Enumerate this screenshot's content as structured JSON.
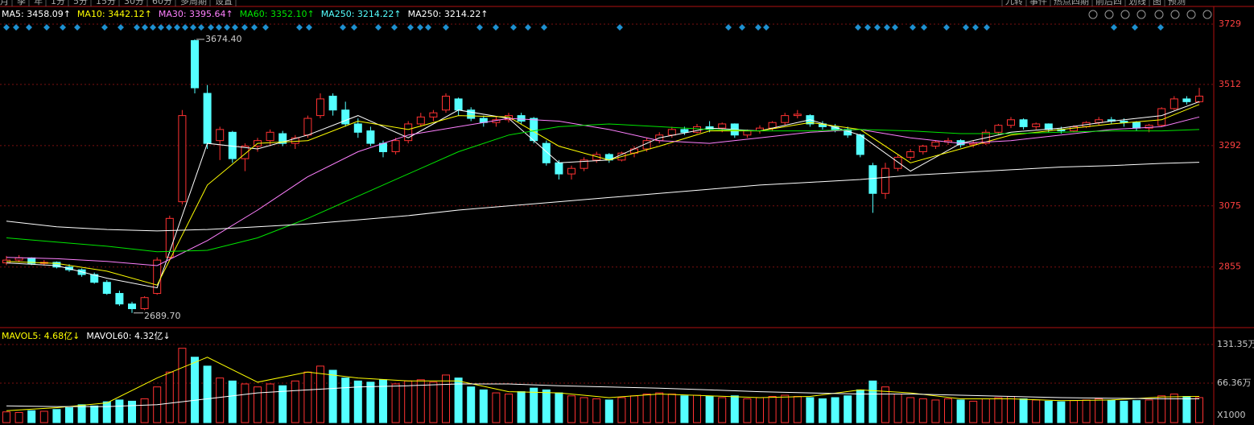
{
  "chart_data": {
    "type": "candlestick",
    "toolbar_left": [
      "月",
      "季",
      "年",
      "1分",
      "5分",
      "15分",
      "30分",
      "60分",
      "多周期",
      "设置"
    ],
    "toolbar_right": [
      "九转",
      "事件",
      "热点四期",
      "前后四",
      "划线",
      "图",
      "预测"
    ],
    "legend": [
      {
        "text": "MA5: 3458.09↑",
        "color": "#ffffff"
      },
      {
        "text": "MA10: 3442.12↑",
        "color": "#ffff00"
      },
      {
        "text": "MA30: 3395.64↑",
        "color": "#ff80ff"
      },
      {
        "text": "MA60: 3352.10↑",
        "color": "#00e600"
      },
      {
        "text": "MA250: 3214.22↑",
        "color": "#54ffff"
      },
      {
        "text": "MA250: 3214.22↑",
        "color": "#ffffff"
      }
    ],
    "vol_legend": [
      {
        "text": "MAVOL5: 4.68亿↓",
        "color": "#ffff00"
      },
      {
        "text": "MAVOL60: 4.32亿↓",
        "color": "#ffffff"
      }
    ],
    "up_color": "#ff3232",
    "down_color": "#54ffff",
    "ylim": [
      2637,
      3787
    ],
    "yticks": [
      3729,
      3512,
      3292,
      3075,
      2855
    ],
    "vol_ylim": [
      0,
      155.7
    ],
    "vol_yticks": [
      {
        "value": 131.35,
        "label": "131.35万"
      },
      {
        "value": 66.36,
        "label": "66.36万"
      }
    ],
    "vol_unit": "X1000",
    "annotations": [
      {
        "value": 3674.4,
        "label": "3674.40"
      },
      {
        "value": 2689.7,
        "label": "2689.70"
      }
    ],
    "candles": [
      [
        2870,
        2895,
        2862,
        2880
      ],
      [
        2880,
        2898,
        2872,
        2888
      ],
      [
        2888,
        2890,
        2862,
        2868
      ],
      [
        2868,
        2880,
        2860,
        2872
      ],
      [
        2872,
        2875,
        2850,
        2855
      ],
      [
        2855,
        2865,
        2838,
        2845
      ],
      [
        2845,
        2850,
        2820,
        2828
      ],
      [
        2828,
        2835,
        2795,
        2800
      ],
      [
        2800,
        2808,
        2755,
        2760
      ],
      [
        2760,
        2770,
        2715,
        2722
      ],
      [
        2722,
        2730,
        2689.7,
        2705
      ],
      [
        2705,
        2750,
        2700,
        2745
      ],
      [
        2760,
        2890,
        2755,
        2880
      ],
      [
        2890,
        3040,
        2885,
        3030
      ],
      [
        3090,
        3420,
        3080,
        3400
      ],
      [
        3670,
        3674.4,
        3480,
        3500
      ],
      [
        3480,
        3510,
        3280,
        3300
      ],
      [
        3310,
        3360,
        3240,
        3350
      ],
      [
        3340,
        3345,
        3230,
        3245
      ],
      [
        3245,
        3300,
        3200,
        3290
      ],
      [
        3290,
        3320,
        3270,
        3310
      ],
      [
        3310,
        3350,
        3290,
        3340
      ],
      [
        3335,
        3345,
        3290,
        3300
      ],
      [
        3300,
        3330,
        3280,
        3320
      ],
      [
        3330,
        3400,
        3320,
        3390
      ],
      [
        3400,
        3480,
        3390,
        3460
      ],
      [
        3470,
        3480,
        3400,
        3420
      ],
      [
        3420,
        3450,
        3360,
        3370
      ],
      [
        3370,
        3390,
        3320,
        3340
      ],
      [
        3345,
        3360,
        3290,
        3300
      ],
      [
        3300,
        3310,
        3250,
        3270
      ],
      [
        3270,
        3320,
        3260,
        3310
      ],
      [
        3310,
        3380,
        3300,
        3370
      ],
      [
        3370,
        3410,
        3360,
        3395
      ],
      [
        3395,
        3420,
        3380,
        3410
      ],
      [
        3420,
        3480,
        3410,
        3470
      ],
      [
        3460,
        3465,
        3400,
        3420
      ],
      [
        3420,
        3430,
        3380,
        3390
      ],
      [
        3390,
        3400,
        3360,
        3375
      ],
      [
        3375,
        3395,
        3360,
        3385
      ],
      [
        3385,
        3410,
        3375,
        3400
      ],
      [
        3400,
        3410,
        3370,
        3380
      ],
      [
        3390,
        3395,
        3300,
        3310
      ],
      [
        3300,
        3310,
        3220,
        3230
      ],
      [
        3230,
        3240,
        3170,
        3190
      ],
      [
        3190,
        3220,
        3170,
        3210
      ],
      [
        3210,
        3250,
        3200,
        3240
      ],
      [
        3240,
        3270,
        3230,
        3260
      ],
      [
        3260,
        3265,
        3230,
        3240
      ],
      [
        3240,
        3270,
        3235,
        3265
      ],
      [
        3265,
        3290,
        3250,
        3280
      ],
      [
        3280,
        3320,
        3270,
        3310
      ],
      [
        3310,
        3340,
        3300,
        3330
      ],
      [
        3330,
        3360,
        3320,
        3350
      ],
      [
        3350,
        3360,
        3330,
        3340
      ],
      [
        3340,
        3370,
        3335,
        3360
      ],
      [
        3360,
        3380,
        3340,
        3350
      ],
      [
        3355,
        3375,
        3340,
        3370
      ],
      [
        3370,
        3372,
        3320,
        3330
      ],
      [
        3330,
        3350,
        3320,
        3345
      ],
      [
        3345,
        3365,
        3335,
        3355
      ],
      [
        3355,
        3380,
        3345,
        3375
      ],
      [
        3375,
        3410,
        3365,
        3400
      ],
      [
        3400,
        3420,
        3390,
        3405
      ],
      [
        3400,
        3405,
        3360,
        3370
      ],
      [
        3370,
        3380,
        3350,
        3360
      ],
      [
        3360,
        3370,
        3340,
        3350
      ],
      [
        3350,
        3360,
        3320,
        3330
      ],
      [
        3330,
        3335,
        3250,
        3260
      ],
      [
        3220,
        3230,
        3050,
        3120
      ],
      [
        3120,
        3230,
        3100,
        3210
      ],
      [
        3210,
        3260,
        3200,
        3250
      ],
      [
        3250,
        3280,
        3240,
        3270
      ],
      [
        3270,
        3295,
        3260,
        3290
      ],
      [
        3290,
        3310,
        3280,
        3305
      ],
      [
        3305,
        3320,
        3295,
        3310
      ],
      [
        3310,
        3315,
        3285,
        3295
      ],
      [
        3295,
        3310,
        3285,
        3300
      ],
      [
        3300,
        3350,
        3295,
        3340
      ],
      [
        3340,
        3370,
        3330,
        3365
      ],
      [
        3365,
        3395,
        3355,
        3385
      ],
      [
        3385,
        3390,
        3350,
        3360
      ],
      [
        3360,
        3375,
        3350,
        3370
      ],
      [
        3370,
        3372,
        3340,
        3350
      ],
      [
        3350,
        3360,
        3335,
        3345
      ],
      [
        3345,
        3365,
        3340,
        3360
      ],
      [
        3360,
        3380,
        3355,
        3375
      ],
      [
        3375,
        3395,
        3365,
        3385
      ],
      [
        3385,
        3395,
        3370,
        3380
      ],
      [
        3380,
        3390,
        3360,
        3375
      ],
      [
        3375,
        3380,
        3345,
        3355
      ],
      [
        3355,
        3370,
        3340,
        3365
      ],
      [
        3365,
        3430,
        3360,
        3425
      ],
      [
        3425,
        3470,
        3420,
        3460
      ],
      [
        3460,
        3470,
        3440,
        3450
      ],
      [
        3450,
        3500,
        3445,
        3470
      ]
    ],
    "volumes": [
      18,
      17,
      20,
      19,
      22,
      25,
      30,
      28,
      35,
      38,
      36,
      40,
      60,
      85,
      125,
      110,
      95,
      75,
      70,
      65,
      60,
      65,
      62,
      70,
      85,
      95,
      88,
      75,
      70,
      68,
      72,
      65,
      70,
      72,
      68,
      80,
      75,
      60,
      55,
      50,
      48,
      52,
      58,
      55,
      50,
      45,
      42,
      40,
      38,
      42,
      45,
      48,
      50,
      48,
      45,
      46,
      44,
      42,
      45,
      40,
      42,
      44,
      46,
      44,
      42,
      40,
      42,
      45,
      55,
      70,
      60,
      48,
      42,
      40,
      38,
      40,
      38,
      36,
      40,
      42,
      44,
      40,
      38,
      36,
      35,
      37,
      38,
      40,
      38,
      36,
      37,
      38,
      45,
      48,
      44,
      42
    ],
    "ma_x": [
      0,
      4,
      8,
      12,
      16,
      20,
      24,
      28,
      32,
      36,
      40,
      44,
      48,
      52,
      56,
      60,
      64,
      68,
      72,
      76,
      80,
      84,
      88,
      92,
      95
    ],
    "ma_series": [
      {
        "color": "#ffffff",
        "values": [
          2870,
          2860,
          2815,
          2780,
          3300,
          3280,
          3330,
          3400,
          3320,
          3420,
          3390,
          3230,
          3240,
          3320,
          3355,
          3345,
          3385,
          3330,
          3200,
          3300,
          3340,
          3355,
          3380,
          3400,
          3450
        ]
      },
      {
        "color": "#ffff00",
        "values": [
          2875,
          2868,
          2840,
          2790,
          3150,
          3300,
          3310,
          3380,
          3350,
          3400,
          3395,
          3290,
          3240,
          3290,
          3345,
          3345,
          3375,
          3350,
          3230,
          3280,
          3330,
          3350,
          3370,
          3385,
          3440
        ]
      },
      {
        "color": "#ff80ff",
        "values": [
          2890,
          2885,
          2875,
          2860,
          2950,
          3060,
          3180,
          3270,
          3330,
          3360,
          3390,
          3380,
          3350,
          3310,
          3300,
          3320,
          3340,
          3350,
          3320,
          3300,
          3310,
          3330,
          3350,
          3360,
          3395
        ]
      },
      {
        "color": "#00e600",
        "values": [
          2960,
          2945,
          2930,
          2910,
          2915,
          2960,
          3030,
          3110,
          3190,
          3270,
          3330,
          3360,
          3370,
          3360,
          3350,
          3345,
          3345,
          3350,
          3345,
          3335,
          3335,
          3340,
          3345,
          3345,
          3350
        ]
      },
      {
        "color": "#ffffff",
        "values": [
          3020,
          3000,
          2990,
          2985,
          2990,
          3000,
          3010,
          3025,
          3040,
          3060,
          3075,
          3090,
          3105,
          3120,
          3135,
          3150,
          3160,
          3170,
          3185,
          3195,
          3205,
          3215,
          3220,
          3228,
          3232
        ]
      }
    ],
    "vol_ma_series": [
      {
        "color": "#ffff00",
        "values": [
          20,
          25,
          33,
          75,
          110,
          68,
          85,
          75,
          70,
          70,
          52,
          50,
          42,
          48,
          45,
          42,
          44,
          55,
          50,
          40,
          40,
          37,
          38,
          43,
          44
        ]
      },
      {
        "color": "#ffffff",
        "values": [
          28,
          27,
          27,
          30,
          40,
          50,
          55,
          60,
          62,
          65,
          65,
          62,
          60,
          58,
          55,
          52,
          50,
          48,
          48,
          46,
          44,
          42,
          41,
          40,
          40
        ]
      }
    ]
  }
}
